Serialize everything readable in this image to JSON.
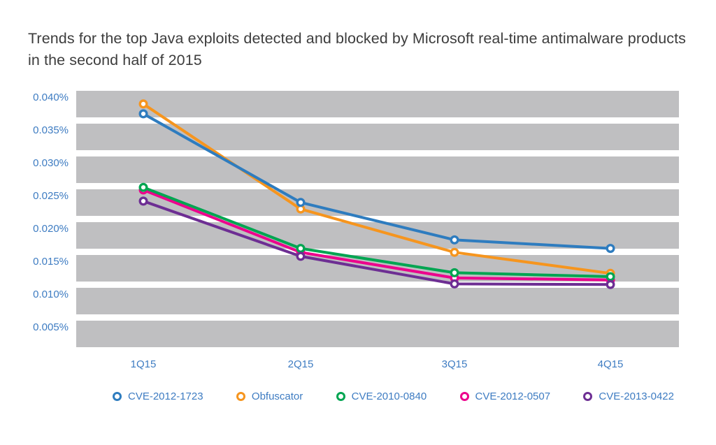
{
  "title": "Trends for the top Java exploits detected and blocked by Microsoft real-time antimalware products in the second half of 2015",
  "chart_data": {
    "type": "line",
    "title": "Trends for the top Java exploits detected and blocked by Microsoft real-time antimalware products in the second half of 2015",
    "xlabel": "",
    "ylabel": "",
    "categories": [
      "1Q15",
      "2Q15",
      "3Q15",
      "4Q15"
    ],
    "series": [
      {
        "name": "CVE-2012-1723",
        "color": "#2e7cbf",
        "values": [
          0.0365,
          0.023,
          0.0173,
          0.016
        ]
      },
      {
        "name": "Obfuscator",
        "color": "#f6951e",
        "values": [
          0.038,
          0.022,
          0.0154,
          0.0122
        ]
      },
      {
        "name": "CVE-2010-0840",
        "color": "#00a551",
        "values": [
          0.0253,
          0.016,
          0.0123,
          0.0117
        ]
      },
      {
        "name": "CVE-2012-0507",
        "color": "#ec008c",
        "values": [
          0.0249,
          0.0154,
          0.0115,
          0.0112
        ]
      },
      {
        "name": "CVE-2013-0422",
        "color": "#6d2e93",
        "values": [
          0.0232,
          0.0148,
          0.0106,
          0.0105
        ]
      }
    ],
    "y_ticks": [
      "0.040%",
      "0.035%",
      "0.030%",
      "0.025%",
      "0.020%",
      "0.015%",
      "0.010%",
      "0.005%"
    ],
    "y_tick_values": [
      0.04,
      0.035,
      0.03,
      0.025,
      0.02,
      0.015,
      0.01,
      0.005
    ],
    "ylim": [
      0.0,
      0.04
    ],
    "grid": "horizontal-gray-bands",
    "legend_position": "bottom",
    "marker": "open-circle"
  },
  "styles": {
    "band_gray": "#bfbfc1",
    "axis_text_blue": "#3e7cc2",
    "title_text": "#3d3d3d",
    "background": "#ffffff"
  }
}
